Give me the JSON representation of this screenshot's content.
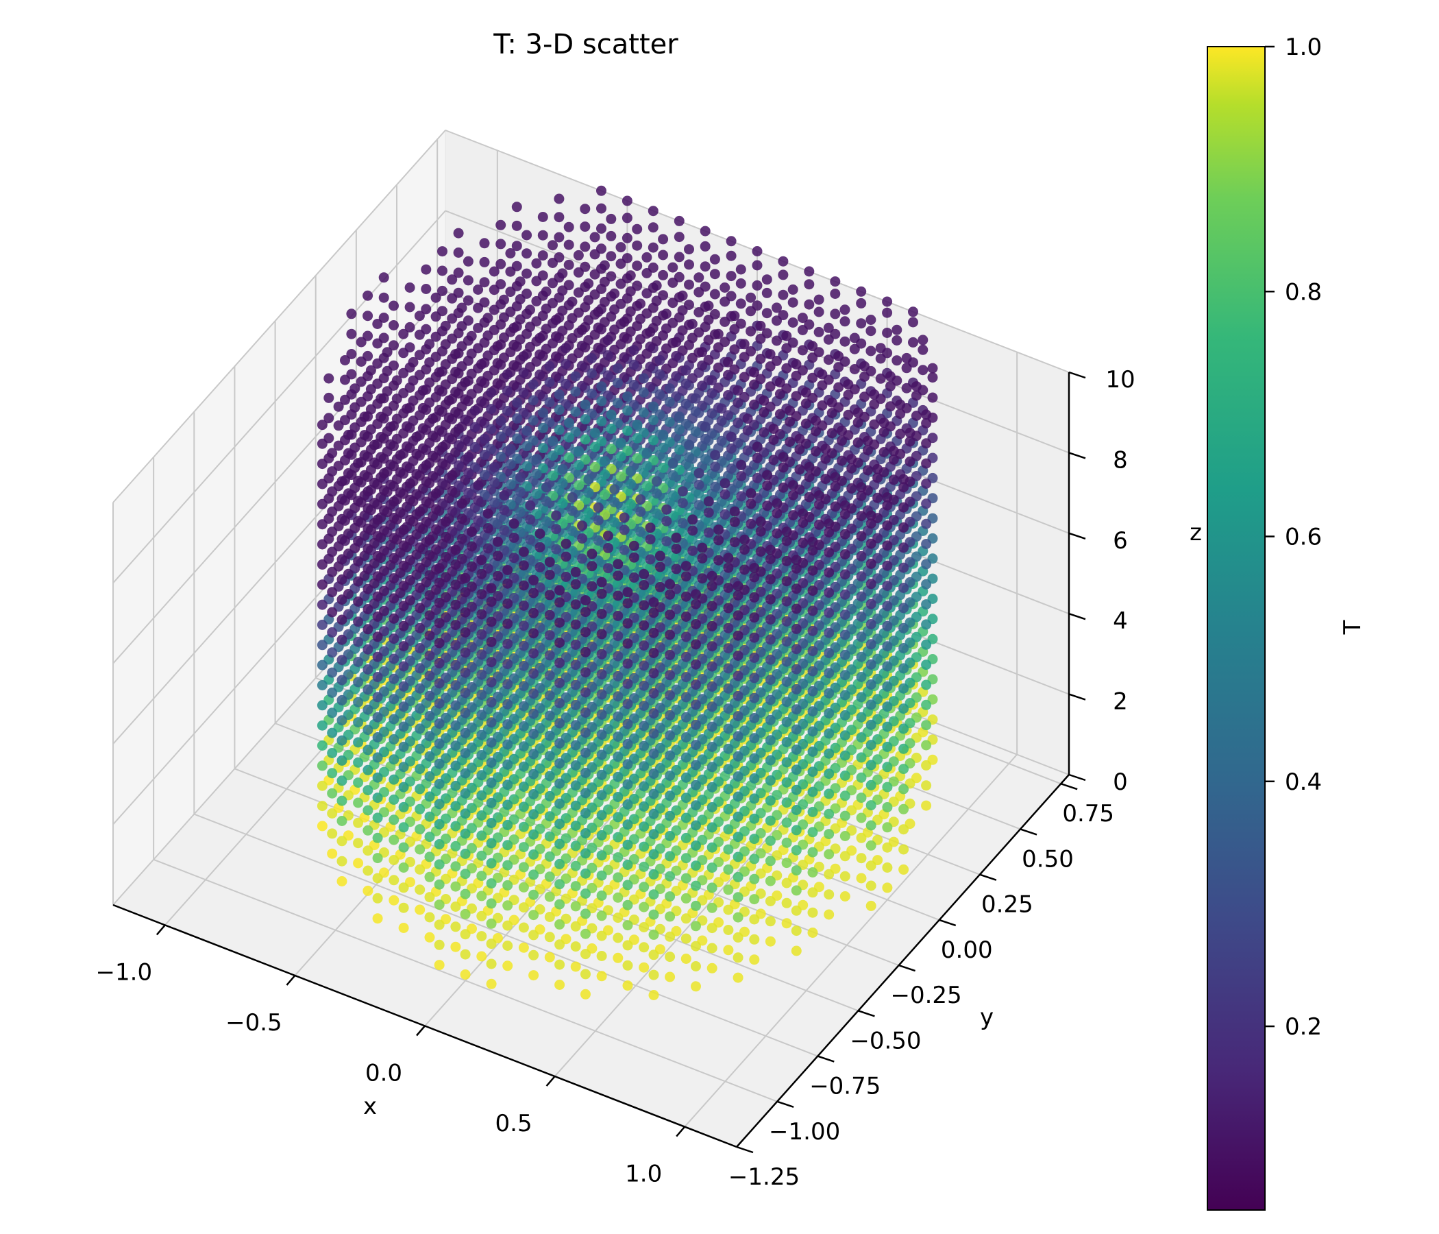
{
  "chart_data": {
    "type": "scatter",
    "projection": "3d",
    "title": "T: 3-D scatter",
    "xlabel": "x",
    "ylabel": "y",
    "zlabel": "z",
    "xlim": [
      -1.2,
      1.2
    ],
    "ylim": [
      -1.25,
      0.8
    ],
    "zlim": [
      0,
      10
    ],
    "x_ticks": [
      "−1.0",
      "−0.5",
      "0.0",
      "0.5",
      "1.0"
    ],
    "y_ticks": [
      "−1.25",
      "−1.00",
      "−0.75",
      "−0.50",
      "−0.25",
      "0.00",
      "0.25",
      "0.50",
      "0.75"
    ],
    "z_ticks": [
      "0",
      "2",
      "4",
      "6",
      "8",
      "10"
    ],
    "grid": true,
    "colormap": "viridis",
    "colorbar": {
      "label": "T",
      "range": [
        0.05,
        1.0
      ],
      "ticks": [
        "0.2",
        "0.4",
        "0.6",
        "0.8",
        "1.0"
      ]
    },
    "points_description": "cylindrical volume of points (r ≤ ~1, z 0–10) colored by T; T ≈ 1 (yellow) near bottom, low (purple) at top and in a band on one side, high (yellow-green) core near the top center",
    "cylinder": {
      "radius": 1.0,
      "z_range": [
        0,
        10
      ]
    }
  }
}
